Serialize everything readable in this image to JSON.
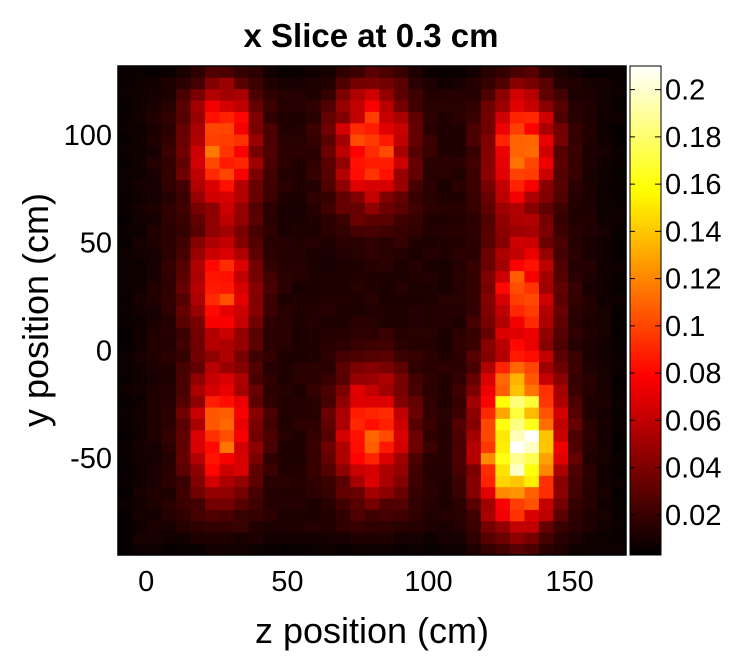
{
  "chart_data": {
    "type": "heatmap",
    "title": "x Slice at 0.3 cm",
    "xlabel": "z position (cm)",
    "ylabel": "y position (cm)",
    "colormap": "hot",
    "xlim": [
      -10,
      170
    ],
    "ylim": [
      -95,
      132
    ],
    "xticks": [
      0,
      50,
      100,
      150
    ],
    "xtick_labels": [
      "0",
      "50",
      "100",
      "150"
    ],
    "yticks": [
      100,
      50,
      0,
      -50
    ],
    "ytick_labels": [
      "100",
      "50",
      "0",
      "-50"
    ],
    "colorbar": {
      "range": [
        0.003,
        0.21
      ],
      "ticks": [
        0.2,
        0.18,
        0.16,
        0.14,
        0.12,
        0.1,
        0.08,
        0.06,
        0.04,
        0.02
      ],
      "tick_labels": [
        "0.2",
        "0.18",
        "0.16",
        "0.14",
        "0.12",
        "0.1",
        "0.08",
        "0.06",
        "0.04",
        "0.02"
      ]
    },
    "grid": {
      "nx": 35,
      "ny": 43,
      "z_start": -10,
      "z_end": 170,
      "y_start": -95,
      "y_end": 132,
      "background": 0.012
    },
    "hotspots": [
      {
        "z": 27,
        "y": 95,
        "peak": 0.1,
        "width_z": 8,
        "width_y": 20
      },
      {
        "z": 80,
        "y": 95,
        "peak": 0.09,
        "width_z": 9,
        "width_y": 20
      },
      {
        "z": 133,
        "y": 95,
        "peak": 0.1,
        "width_z": 8,
        "width_y": 20
      },
      {
        "z": 27,
        "y": 28,
        "peak": 0.085,
        "width_z": 8,
        "width_y": 18
      },
      {
        "z": 133,
        "y": 28,
        "peak": 0.085,
        "width_z": 8,
        "width_y": 18
      },
      {
        "z": 27,
        "y": -38,
        "peak": 0.095,
        "width_z": 8,
        "width_y": 20
      },
      {
        "z": 80,
        "y": -38,
        "peak": 0.09,
        "width_z": 9,
        "width_y": 20
      },
      {
        "z": 132,
        "y": -42,
        "peak": 0.2,
        "width_z": 9,
        "width_y": 24
      }
    ]
  }
}
